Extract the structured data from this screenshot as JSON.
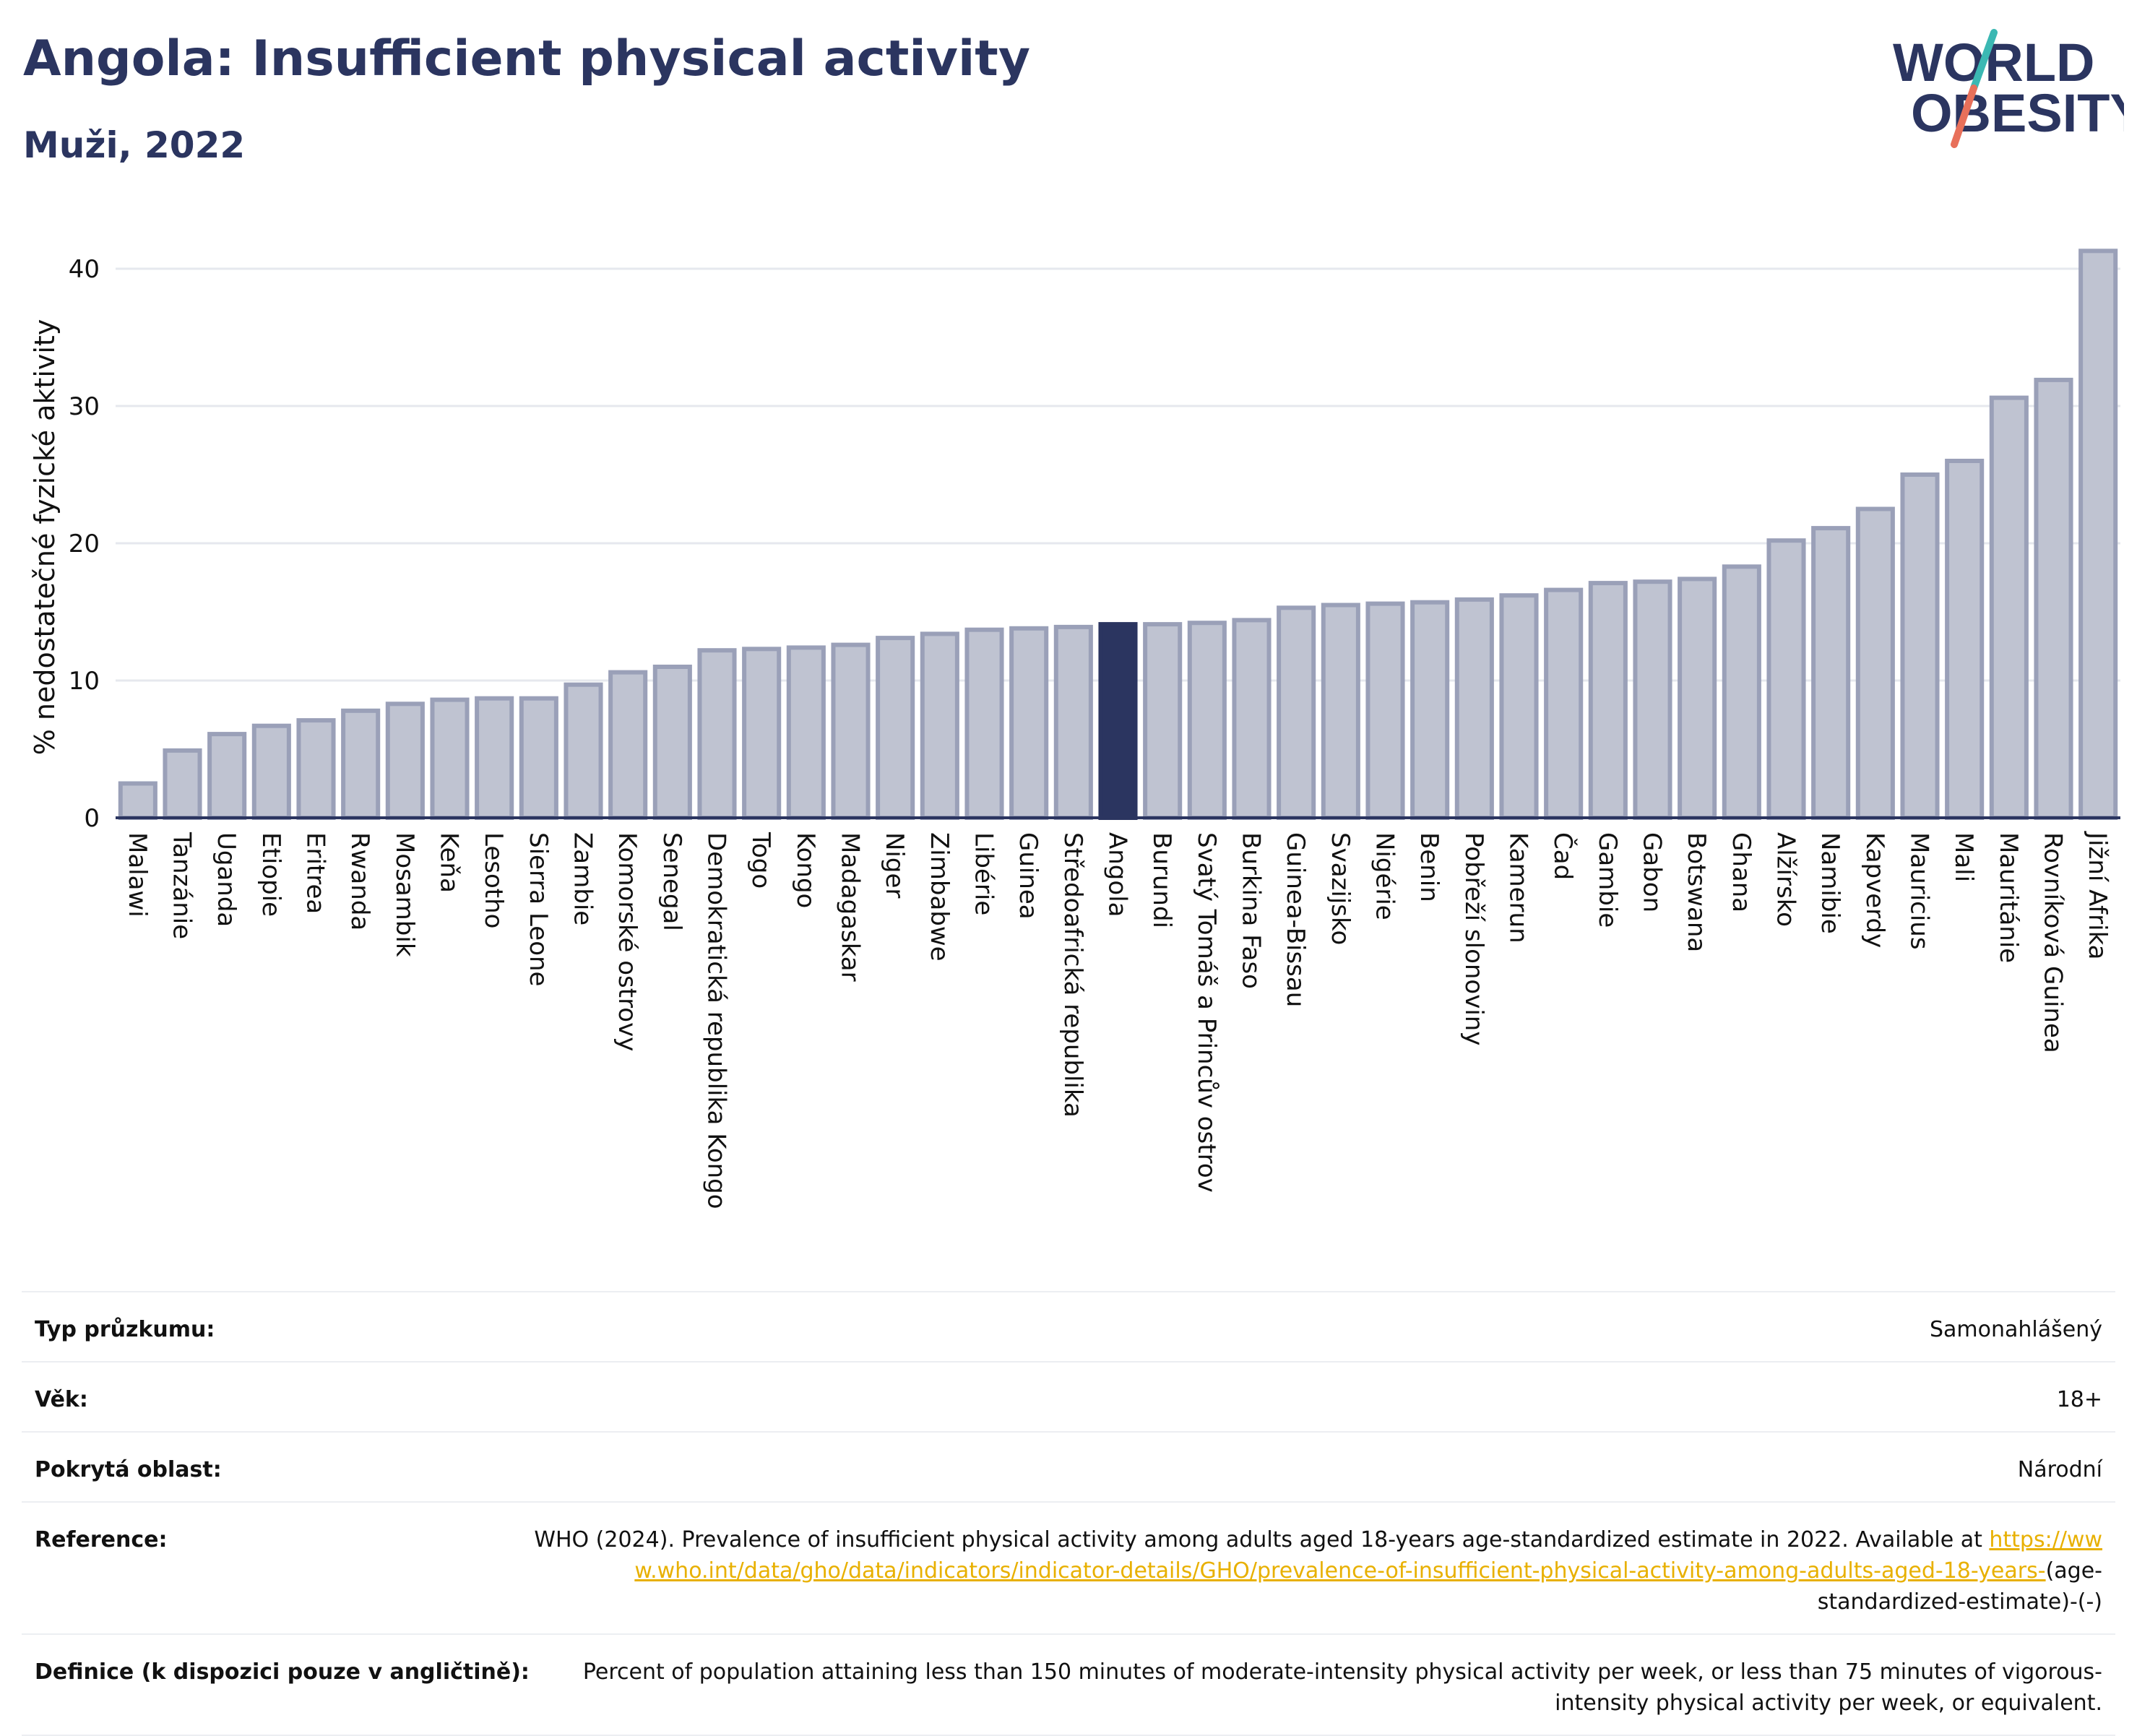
{
  "header": {
    "title": "Angola: Insufficient physical activity",
    "subtitle": "Muži, 2022"
  },
  "logo": {
    "line1": "WORLD",
    "line2": "OBESITY",
    "colors": {
      "text": "#2b3560",
      "slash_teal": "#3bb8b3",
      "slash_red": "#e8705a"
    }
  },
  "chart_data": {
    "type": "bar",
    "ylabel": "% nedostatečné fyzické aktivity",
    "ylim": [
      0,
      43
    ],
    "yticks": [
      0,
      10,
      20,
      30,
      40
    ],
    "grid": true,
    "highlight": "Angola",
    "colors": {
      "bar": "#bfc3d1",
      "bar_edge": "#9aa0b8",
      "highlight": "#2b3560",
      "grid": "#e6e8ee",
      "axis": "#2b3560"
    },
    "categories": [
      "Malawi",
      "Tanzánie",
      "Uganda",
      "Etiopie",
      "Eritrea",
      "Rwanda",
      "Mosambik",
      "Keňa",
      "Lesotho",
      "Sierra Leone",
      "Zambie",
      "Komorské ostrovy",
      "Senegal",
      "Demokratická republika Kongo",
      "Togo",
      "Kongo",
      "Madagaskar",
      "Niger",
      "Zimbabwe",
      "Libérie",
      "Guinea",
      "Středoafrická republika",
      "Angola",
      "Burundi",
      "Svatý Tomáš a Princův ostrov",
      "Burkina Faso",
      "Guinea-Bissau",
      "Svazijsko",
      "Nigérie",
      "Benin",
      "Pobřeží slonoviny",
      "Kamerun",
      "Čad",
      "Gambie",
      "Gabon",
      "Botswana",
      "Ghana",
      "Alžírsko",
      "Namibie",
      "Kapverdy",
      "Mauricius",
      "Mali",
      "Mauritánie",
      "Rovníková Guinea",
      "Jižní Afrika"
    ],
    "values": [
      2.5,
      4.9,
      6.1,
      6.7,
      7.1,
      7.8,
      8.3,
      8.6,
      8.7,
      8.7,
      9.7,
      10.6,
      11.0,
      12.2,
      12.3,
      12.4,
      12.6,
      13.1,
      13.4,
      13.7,
      13.8,
      13.9,
      14.1,
      14.1,
      14.2,
      14.4,
      15.3,
      15.5,
      15.6,
      15.7,
      15.9,
      16.2,
      16.6,
      17.1,
      17.2,
      17.4,
      18.3,
      20.2,
      21.1,
      22.5,
      25.0,
      26.0,
      30.6,
      31.9,
      41.3
    ]
  },
  "meta": {
    "rows": [
      {
        "key": "Typ průzkumu:",
        "value": "Samonahlášený"
      },
      {
        "key": "Věk:",
        "value": "18+"
      },
      {
        "key": "Pokrytá oblast:",
        "value": "Národní"
      }
    ],
    "reference": {
      "key": "Reference:",
      "text": "WHO (2024). Prevalence of insufficient physical activity among adults aged 18-years age-standardized estimate in 2022. Available at",
      "link": "https://www.who.int/data/gho/data/indicators/indicator-details/GHO/prevalence-of-insufficient-physical-activity-among-adults-aged-18-years-",
      "suffix": "(age-standardized-estimate)-(-)"
    },
    "definition": {
      "key": "Definice (k dispozici pouze v angličtině):",
      "value": "Percent of population attaining less than 150 minutes of moderate-intensity physical activity per week, or less than 75 minutes of vigorous-intensity physical activity per week, or equivalent."
    }
  }
}
